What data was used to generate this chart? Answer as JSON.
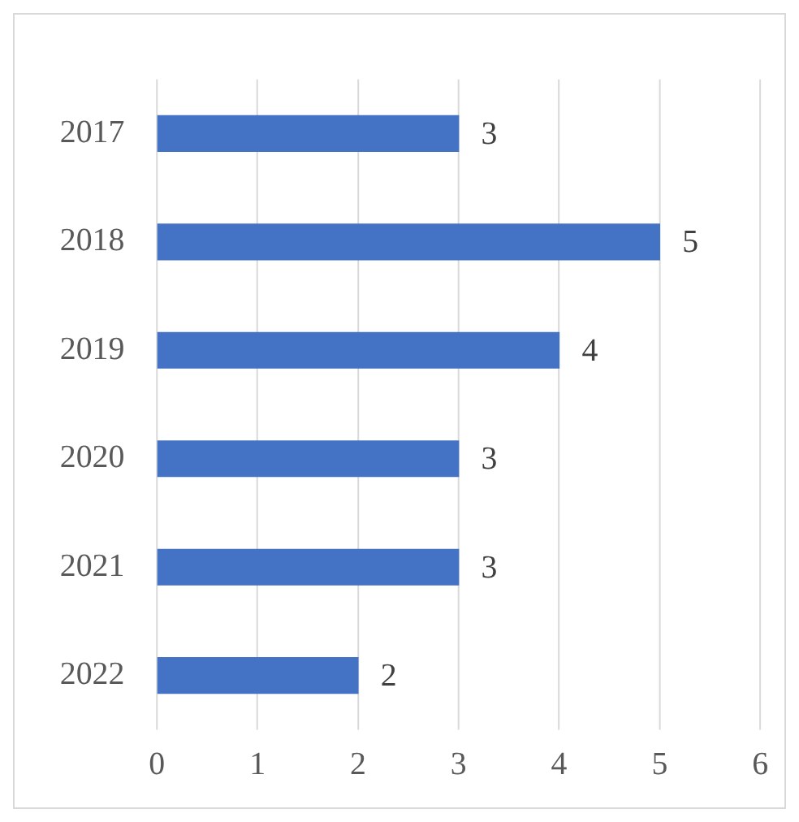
{
  "chart_data": {
    "type": "bar",
    "orientation": "horizontal",
    "categories": [
      "2017",
      "2018",
      "2019",
      "2020",
      "2021",
      "2022"
    ],
    "values": [
      3,
      5,
      4,
      3,
      3,
      2
    ],
    "color": "#4472c4",
    "xlim": [
      0,
      6
    ],
    "xticks": [
      0,
      1,
      2,
      3,
      4,
      5,
      6
    ],
    "grid": "x",
    "data_labels": true,
    "legend": false
  }
}
